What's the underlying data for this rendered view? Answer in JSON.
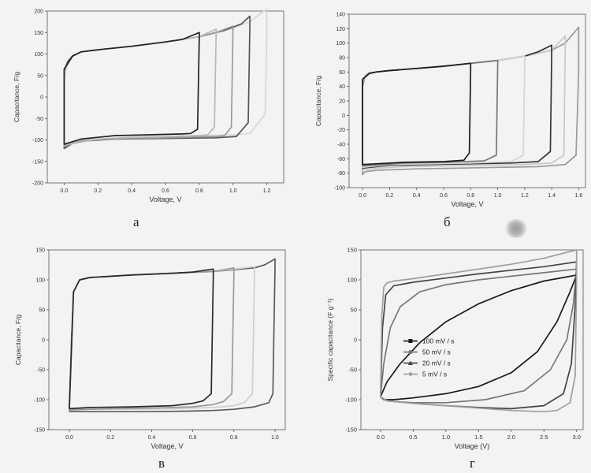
{
  "sublabels": {
    "a": "a",
    "b": "б",
    "c": "в",
    "d": "г"
  },
  "chart_data": [
    {
      "id": "a",
      "type": "line",
      "xlabel": "Voltage, V",
      "ylabel": "Capacitance, F/g",
      "xlim": [
        -0.1,
        1.3
      ],
      "ylim": [
        -200,
        200
      ],
      "xticks": [
        0.0,
        0.2,
        0.4,
        0.6,
        0.8,
        1.0,
        1.2
      ],
      "yticks": [
        -200,
        -150,
        -100,
        -50,
        0,
        50,
        100,
        150,
        200
      ],
      "tick_decimals": 1,
      "series": [
        {
          "color": "#d8d8d8",
          "x": [
            0.0,
            0.02,
            0.05,
            0.1,
            0.2,
            0.4,
            0.6,
            0.8,
            1.0,
            1.1,
            1.2,
            1.2,
            1.19,
            1.1,
            1.0,
            0.8,
            0.6,
            0.4,
            0.2,
            0.1,
            0.05,
            0.0,
            0.0
          ],
          "y": [
            40,
            75,
            95,
            105,
            110,
            118,
            128,
            140,
            160,
            175,
            205,
            140,
            -40,
            -85,
            -88,
            -90,
            -92,
            -95,
            -98,
            -102,
            -108,
            -118,
            40
          ]
        },
        {
          "color": "#555555",
          "x": [
            0.0,
            0.02,
            0.05,
            0.1,
            0.2,
            0.4,
            0.6,
            0.8,
            0.95,
            1.05,
            1.1,
            1.1,
            1.09,
            1.02,
            0.9,
            0.7,
            0.5,
            0.3,
            0.1,
            0.05,
            0.0,
            0.0
          ],
          "y": [
            60,
            82,
            96,
            105,
            110,
            118,
            128,
            140,
            155,
            170,
            188,
            170,
            -60,
            -92,
            -95,
            -96,
            -97,
            -98,
            -103,
            -108,
            -120,
            60
          ]
        },
        {
          "color": "#9a9a9a",
          "x": [
            0.0,
            0.05,
            0.1,
            0.2,
            0.4,
            0.6,
            0.8,
            0.9,
            1.0,
            1.0,
            0.99,
            0.95,
            0.9,
            0.7,
            0.5,
            0.3,
            0.1,
            0.0,
            0.0
          ],
          "y": [
            65,
            95,
            105,
            110,
            118,
            128,
            140,
            150,
            165,
            158,
            -70,
            -90,
            -92,
            -94,
            -96,
            -97,
            -102,
            -115,
            65
          ]
        },
        {
          "color": "#b8b8b8",
          "x": [
            0.0,
            0.05,
            0.1,
            0.2,
            0.4,
            0.6,
            0.8,
            0.9,
            0.9,
            0.89,
            0.85,
            0.8,
            0.6,
            0.4,
            0.2,
            0.0,
            0.0
          ],
          "y": [
            65,
            95,
            105,
            110,
            118,
            128,
            140,
            158,
            150,
            -70,
            -88,
            -90,
            -92,
            -94,
            -98,
            -112,
            65
          ]
        },
        {
          "color": "#222222",
          "x": [
            0.0,
            0.05,
            0.1,
            0.2,
            0.4,
            0.6,
            0.7,
            0.8,
            0.8,
            0.79,
            0.75,
            0.7,
            0.5,
            0.3,
            0.1,
            0.0,
            0.0
          ],
          "y": [
            65,
            95,
            105,
            110,
            118,
            128,
            134,
            150,
            140,
            -75,
            -85,
            -86,
            -88,
            -90,
            -98,
            -110,
            65
          ]
        }
      ]
    },
    {
      "id": "b",
      "type": "line",
      "xlabel": "Voltage, V",
      "ylabel": "Capacitance, F/g",
      "xlim": [
        -0.1,
        1.65
      ],
      "ylim": [
        -100,
        140
      ],
      "xticks": [
        0.0,
        0.2,
        0.4,
        0.6,
        0.8,
        1.0,
        1.2,
        1.4,
        1.6
      ],
      "yticks": [
        -100,
        -80,
        -60,
        -40,
        -20,
        0,
        20,
        40,
        60,
        80,
        100,
        120,
        140
      ],
      "tick_decimals": 1,
      "series": [
        {
          "color": "#9a9a9a",
          "x": [
            0.0,
            0.02,
            0.05,
            0.1,
            0.2,
            0.4,
            0.6,
            0.8,
            1.0,
            1.2,
            1.4,
            1.5,
            1.6,
            1.6,
            1.58,
            1.5,
            1.3,
            1.0,
            0.7,
            0.4,
            0.1,
            0.02,
            0.0,
            0.0
          ],
          "y": [
            40,
            55,
            59,
            60,
            62,
            65,
            68,
            72,
            76,
            82,
            90,
            100,
            122,
            60,
            -55,
            -68,
            -71,
            -72,
            -73,
            -74,
            -76,
            -78,
            -82,
            40
          ]
        },
        {
          "color": "#c8c8c8",
          "x": [
            0.0,
            0.05,
            0.1,
            0.2,
            0.4,
            0.6,
            0.8,
            1.0,
            1.2,
            1.4,
            1.5,
            1.5,
            1.49,
            1.4,
            1.2,
            0.9,
            0.6,
            0.3,
            0.1,
            0.0,
            0.0
          ],
          "y": [
            50,
            58,
            60,
            62,
            65,
            68,
            72,
            76,
            82,
            90,
            110,
            95,
            -55,
            -66,
            -68,
            -69,
            -70,
            -71,
            -73,
            -76,
            50
          ]
        },
        {
          "color": "#333333",
          "x": [
            0.0,
            0.05,
            0.1,
            0.2,
            0.4,
            0.6,
            0.8,
            1.0,
            1.2,
            1.3,
            1.4,
            1.4,
            1.39,
            1.3,
            1.1,
            0.8,
            0.5,
            0.2,
            0.0,
            0.0
          ],
          "y": [
            50,
            58,
            60,
            62,
            65,
            68,
            72,
            76,
            82,
            88,
            97,
            80,
            -50,
            -64,
            -66,
            -67,
            -68,
            -69,
            -73,
            50
          ]
        },
        {
          "color": "#d5d5d5",
          "x": [
            0.0,
            0.05,
            0.1,
            0.2,
            0.4,
            0.6,
            0.8,
            1.0,
            1.1,
            1.2,
            1.2,
            1.19,
            1.1,
            0.8,
            0.5,
            0.2,
            0.0,
            0.0
          ],
          "y": [
            50,
            58,
            60,
            62,
            65,
            68,
            72,
            76,
            79,
            82,
            75,
            -55,
            -64,
            -66,
            -67,
            -68,
            -72,
            50
          ]
        },
        {
          "color": "#777777",
          "x": [
            0.0,
            0.05,
            0.1,
            0.2,
            0.4,
            0.6,
            0.8,
            0.9,
            1.0,
            1.0,
            0.99,
            0.9,
            0.6,
            0.3,
            0.0,
            0.0
          ],
          "y": [
            50,
            58,
            60,
            62,
            65,
            68,
            72,
            74,
            76,
            70,
            -55,
            -63,
            -65,
            -66,
            -70,
            50
          ]
        },
        {
          "color": "#1c1c1c",
          "x": [
            0.0,
            0.05,
            0.1,
            0.2,
            0.4,
            0.6,
            0.7,
            0.8,
            0.8,
            0.79,
            0.75,
            0.6,
            0.3,
            0.0,
            0.0
          ],
          "y": [
            50,
            58,
            60,
            62,
            65,
            68,
            70,
            72,
            66,
            -52,
            -62,
            -64,
            -65,
            -68,
            50
          ]
        }
      ]
    },
    {
      "id": "c",
      "type": "line",
      "xlabel": "Voltage, V",
      "ylabel": "Capacitance, F/g",
      "xlim": [
        -0.1,
        1.05
      ],
      "ylim": [
        -150,
        150
      ],
      "xticks": [
        0.0,
        0.2,
        0.4,
        0.6,
        0.8,
        1.0
      ],
      "yticks": [
        -150,
        -100,
        -50,
        0,
        50,
        100,
        150
      ],
      "tick_decimals": 1,
      "series": [
        {
          "color": "#5a5a5a",
          "x": [
            0.0,
            0.01,
            0.02,
            0.05,
            0.1,
            0.3,
            0.5,
            0.7,
            0.9,
            0.95,
            1.0,
            1.0,
            0.99,
            0.97,
            0.9,
            0.8,
            0.7,
            0.6,
            0.4,
            0.2,
            0.05,
            0.0,
            0.0
          ],
          "y": [
            -110,
            0,
            80,
            100,
            104,
            108,
            111,
            114,
            120,
            125,
            135,
            120,
            -90,
            -105,
            -112,
            -116,
            -118,
            -119,
            -120,
            -120,
            -120,
            -120,
            -110
          ]
        },
        {
          "color": "#cfcfcf",
          "x": [
            0.0,
            0.02,
            0.05,
            0.1,
            0.3,
            0.5,
            0.7,
            0.9,
            0.9,
            0.89,
            0.85,
            0.8,
            0.7,
            0.5,
            0.3,
            0.1,
            0.0,
            0.0
          ],
          "y": [
            -110,
            80,
            100,
            104,
            108,
            111,
            114,
            122,
            110,
            -90,
            -105,
            -110,
            -113,
            -115,
            -116,
            -116,
            -118,
            -110
          ]
        },
        {
          "color": "#9a9a9a",
          "x": [
            0.0,
            0.02,
            0.05,
            0.1,
            0.3,
            0.5,
            0.7,
            0.8,
            0.8,
            0.79,
            0.75,
            0.7,
            0.6,
            0.4,
            0.2,
            0.0,
            0.0
          ],
          "y": [
            -110,
            80,
            100,
            104,
            108,
            111,
            114,
            120,
            110,
            -90,
            -103,
            -108,
            -112,
            -114,
            -115,
            -117,
            -110
          ]
        },
        {
          "color": "#2a2a2a",
          "x": [
            0.0,
            0.02,
            0.05,
            0.1,
            0.3,
            0.5,
            0.6,
            0.7,
            0.7,
            0.69,
            0.65,
            0.6,
            0.5,
            0.3,
            0.1,
            0.0,
            0.0
          ],
          "y": [
            -110,
            80,
            100,
            104,
            108,
            111,
            113,
            118,
            110,
            -90,
            -102,
            -106,
            -110,
            -112,
            -113,
            -115,
            -110
          ]
        }
      ]
    },
    {
      "id": "d",
      "type": "line",
      "xlabel": "Voltage (V)",
      "ylabel": "Specific capacitance (F g⁻¹)",
      "xlim": [
        -0.3,
        3.1
      ],
      "ylim": [
        -150,
        150
      ],
      "xticks": [
        0.0,
        0.5,
        1.0,
        1.5,
        2.0,
        2.5,
        3.0
      ],
      "yticks": [
        -150,
        -100,
        -50,
        0,
        50,
        100,
        150
      ],
      "tick_decimals": 1,
      "legend": {
        "position": "center-left",
        "entries": [
          "100 mV / s",
          "50 mV / s",
          "20 mV / s",
          "5 mV / s"
        ]
      },
      "series": [
        {
          "name": "100 mV / s",
          "color": "#1a1a1a",
          "marker": "square",
          "x": [
            0.0,
            0.1,
            0.3,
            0.6,
            1.0,
            1.5,
            2.0,
            2.5,
            2.8,
            3.0,
            2.9,
            2.7,
            2.4,
            2.0,
            1.5,
            1.0,
            0.5,
            0.2,
            0.05,
            0.0
          ],
          "y": [
            -95,
            -70,
            -40,
            -5,
            30,
            60,
            82,
            98,
            104,
            108,
            80,
            30,
            -20,
            -55,
            -78,
            -90,
            -97,
            -100,
            -100,
            -95
          ]
        },
        {
          "name": "50 mV / s",
          "color": "#777777",
          "marker": "circle",
          "x": [
            0.0,
            0.05,
            0.15,
            0.3,
            0.6,
            1.0,
            1.5,
            2.0,
            2.5,
            3.0,
            2.95,
            2.85,
            2.6,
            2.2,
            1.6,
            1.0,
            0.5,
            0.2,
            0.05,
            0.0
          ],
          "y": [
            -95,
            -40,
            20,
            55,
            80,
            92,
            100,
            106,
            112,
            118,
            60,
            0,
            -50,
            -85,
            -100,
            -105,
            -105,
            -103,
            -100,
            -95
          ]
        },
        {
          "name": "20 mV / s",
          "color": "#444444",
          "marker": "triangle",
          "x": [
            0.0,
            0.03,
            0.08,
            0.2,
            0.5,
            1.0,
            1.5,
            2.0,
            2.5,
            3.0,
            2.98,
            2.92,
            2.8,
            2.5,
            2.0,
            1.5,
            1.0,
            0.5,
            0.1,
            0.0
          ],
          "y": [
            -95,
            20,
            75,
            90,
            96,
            103,
            110,
            116,
            122,
            130,
            60,
            -40,
            -90,
            -110,
            -115,
            -113,
            -110,
            -106,
            -102,
            -95
          ]
        },
        {
          "name": "5 mV / s",
          "color": "#9e9e9e",
          "marker": "diamond",
          "x": [
            0.0,
            0.02,
            0.05,
            0.1,
            0.2,
            0.5,
            1.0,
            1.5,
            2.0,
            2.5,
            3.0,
            3.0,
            2.98,
            2.9,
            2.7,
            2.5,
            2.0,
            1.5,
            1.0,
            0.5,
            0.1,
            0.0
          ],
          "y": [
            -95,
            40,
            88,
            95,
            98,
            102,
            110,
            118,
            126,
            136,
            150,
            100,
            -60,
            -105,
            -118,
            -120,
            -118,
            -114,
            -110,
            -106,
            -102,
            -95
          ]
        }
      ]
    }
  ]
}
